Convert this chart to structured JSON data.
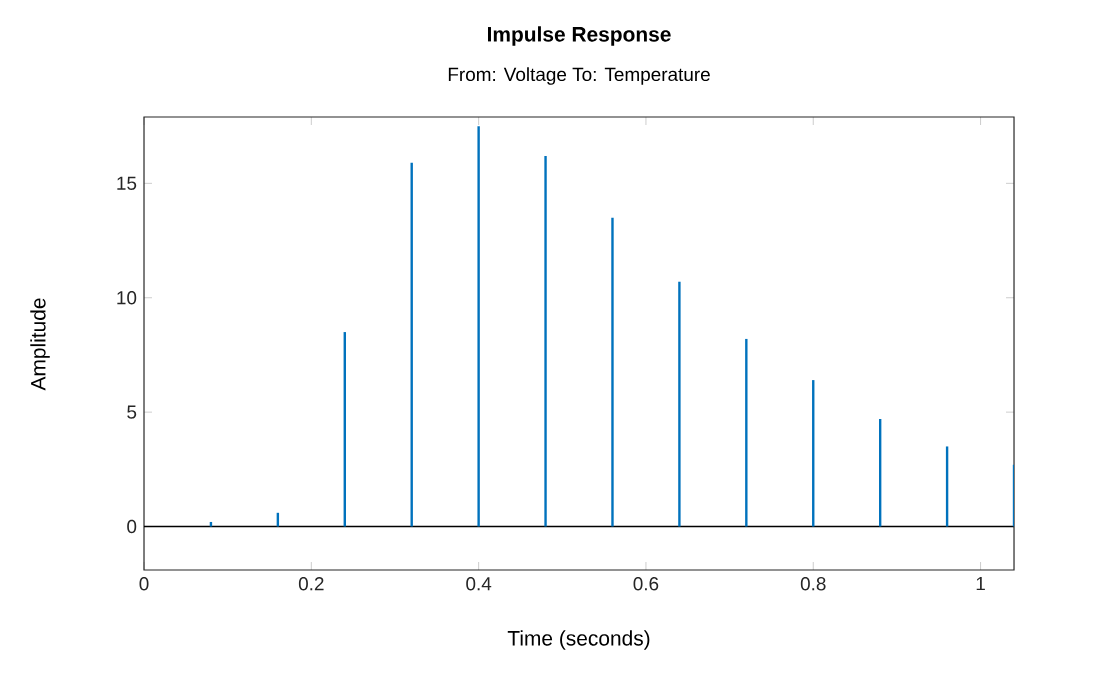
{
  "chart_data": {
    "type": "bar",
    "title": "Impulse Response",
    "subtitle": "From: Voltage  To: Temperature",
    "xlabel": "Time (seconds)",
    "ylabel": "Amplitude",
    "x": [
      0,
      0.08,
      0.16,
      0.24,
      0.32,
      0.4,
      0.48,
      0.56,
      0.64,
      0.72,
      0.8,
      0.88,
      0.96,
      1.04
    ],
    "values": [
      0,
      0.2,
      0.6,
      8.5,
      15.9,
      17.5,
      16.2,
      13.5,
      10.7,
      8.2,
      6.4,
      4.7,
      3.5,
      2.7
    ],
    "color": "#0072bd",
    "xlim": [
      0,
      1.04
    ],
    "ylim": [
      -1.9,
      17.9
    ],
    "xticks": [
      0,
      0.2,
      0.4,
      0.6,
      0.8,
      1
    ],
    "yticks": [
      0,
      5,
      10,
      15
    ],
    "ref_lines": [
      {
        "axis": "y",
        "value": 0,
        "color": "#000000"
      }
    ]
  }
}
